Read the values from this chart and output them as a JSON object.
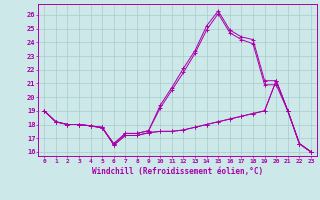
{
  "xlabel": "Windchill (Refroidissement éolien,°C)",
  "background_color": "#cce8e8",
  "line_color": "#aa00aa",
  "grid_color": "#aacccc",
  "xlim": [
    -0.5,
    23.5
  ],
  "ylim": [
    15.7,
    26.8
  ],
  "yticks": [
    16,
    17,
    18,
    19,
    20,
    21,
    22,
    23,
    24,
    25,
    26
  ],
  "xticks": [
    0,
    1,
    2,
    3,
    4,
    5,
    6,
    7,
    8,
    9,
    10,
    11,
    12,
    13,
    14,
    15,
    16,
    17,
    18,
    19,
    20,
    21,
    22,
    23
  ],
  "series": [
    [
      19.0,
      18.2,
      18.0,
      18.0,
      17.9,
      17.8,
      16.5,
      17.2,
      17.2,
      17.4,
      17.5,
      17.5,
      17.6,
      17.8,
      18.0,
      18.2,
      18.4,
      18.6,
      18.8,
      19.0,
      21.2,
      19.0,
      16.6,
      16.0
    ],
    [
      19.0,
      18.2,
      18.0,
      18.0,
      17.9,
      17.75,
      16.6,
      17.35,
      17.35,
      17.55,
      19.4,
      20.7,
      22.1,
      23.4,
      25.2,
      26.3,
      24.9,
      24.4,
      24.2,
      21.2,
      21.2,
      19.0,
      16.6,
      16.0
    ],
    [
      19.0,
      18.2,
      18.0,
      18.0,
      17.9,
      17.75,
      16.6,
      17.35,
      17.35,
      17.55,
      19.2,
      20.5,
      21.8,
      23.2,
      24.9,
      26.1,
      24.7,
      24.2,
      23.9,
      20.9,
      20.9,
      19.0,
      16.6,
      16.0
    ],
    [
      19.0,
      18.2,
      18.0,
      18.0,
      17.9,
      17.8,
      16.5,
      17.2,
      17.2,
      17.4,
      17.5,
      17.5,
      17.6,
      17.8,
      18.0,
      18.2,
      18.4,
      18.6,
      18.8,
      19.0,
      21.2,
      19.0,
      16.6,
      16.0
    ]
  ]
}
